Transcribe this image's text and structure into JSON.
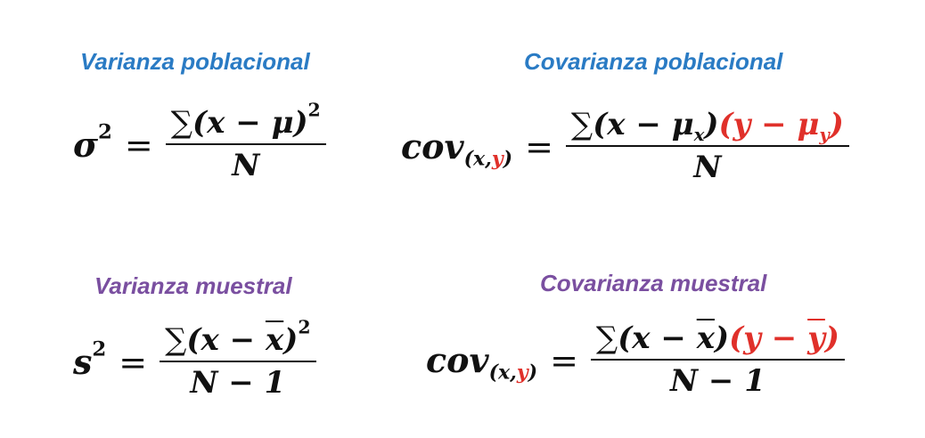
{
  "headings": {
    "pop_variance": "Varianza poblacional",
    "pop_covariance": "Covarianza poblacional",
    "sample_variance": "Varianza muestral",
    "sample_covariance": "Covarianza muestral"
  },
  "formulas": {
    "pop_variance": {
      "lhs_symbol": "σ",
      "lhs_exp": "2",
      "equals": "=",
      "sum": "∑",
      "num_open": "(x − ",
      "num_mean": "μ",
      "num_close": ")",
      "num_exp": "2",
      "denominator": "N"
    },
    "pop_covariance": {
      "lhs_symbol": "cov",
      "lhs_sub_open": "(x,",
      "lhs_sub_y": "y",
      "lhs_sub_close": ")",
      "equals": "=",
      "sum": "∑",
      "num_x_part": "(x − μ",
      "num_x_sub": "x",
      "num_x_close": ")",
      "num_y_part": "(y − μ",
      "num_y_sub": "y",
      "num_y_close": ")",
      "denominator": "N"
    },
    "sample_variance": {
      "lhs_symbol": "s",
      "lhs_exp": "2",
      "equals": "=",
      "sum": "∑",
      "num_open": "(x − ",
      "num_mean": "x",
      "num_close": ")",
      "num_exp": "2",
      "denominator": "N − 1"
    },
    "sample_covariance": {
      "lhs_symbol": "cov",
      "lhs_sub_open": "(x,",
      "lhs_sub_y": "y",
      "lhs_sub_close": ")",
      "equals": "=",
      "sum": "∑",
      "num_x_open": "(x − ",
      "num_x_mean": "x",
      "num_x_close": ")",
      "num_y_open": "(y − ",
      "num_y_mean": "y",
      "num_y_close": ")",
      "denominator": "N − 1"
    }
  },
  "colors": {
    "heading_blue": "#2a7bc4",
    "heading_purple": "#7a4fa0",
    "formula_text": "#111111",
    "accent_red": "#e0302a"
  }
}
